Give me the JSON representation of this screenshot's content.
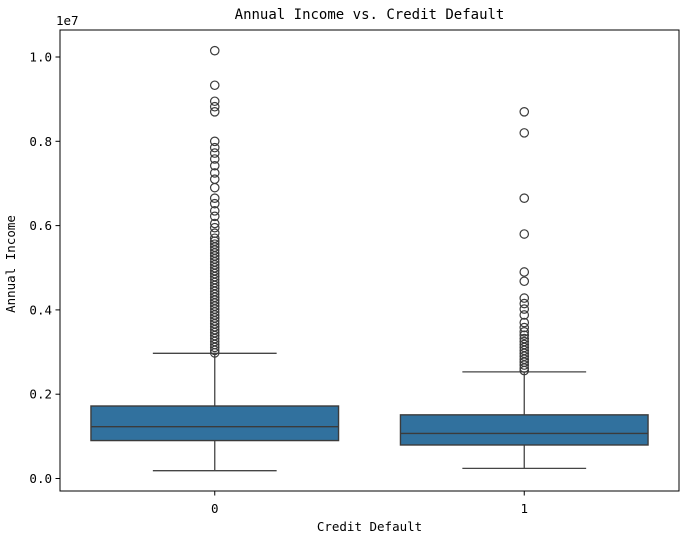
{
  "chart_data": {
    "type": "boxplot",
    "title": "Annual Income vs. Credit Default",
    "xlabel": "Credit Default",
    "ylabel": "Annual Income",
    "y_offset_text": "1e7",
    "grid": false,
    "legend_position": "none",
    "ylim": [
      -300000,
      10640000
    ],
    "ytick_values": [
      0,
      2000000,
      4000000,
      6000000,
      8000000,
      10000000
    ],
    "ytick_labels": [
      "0.0",
      "0.2",
      "0.4",
      "0.6",
      "0.8",
      "1.0"
    ],
    "categories": [
      "0",
      "1"
    ],
    "series": [
      {
        "category": "0",
        "whisker_low": 185000,
        "q1": 900000,
        "median": 1230000,
        "q3": 1720000,
        "whisker_high": 2970000,
        "outliers": [
          10150000,
          9330000,
          8950000,
          8820000,
          8700000,
          8000000,
          7850000,
          7720000,
          7580000,
          7420000,
          7250000,
          7100000,
          6900000,
          6650000,
          6520000,
          6350000,
          6220000,
          6050000,
          5950000,
          5820000,
          5700000,
          5630000,
          5560000,
          5490000,
          5420000,
          5350000,
          5280000,
          5210000,
          5140000,
          5070000,
          5000000,
          4930000,
          4860000,
          4790000,
          4720000,
          4650000,
          4580000,
          4510000,
          4440000,
          4370000,
          4300000,
          4230000,
          4160000,
          4090000,
          4020000,
          3950000,
          3880000,
          3810000,
          3740000,
          3670000,
          3600000,
          3530000,
          3460000,
          3390000,
          3320000,
          3250000,
          3180000,
          3110000,
          3040000,
          2980000
        ]
      },
      {
        "category": "1",
        "whisker_low": 240000,
        "q1": 795000,
        "median": 1070000,
        "q3": 1510000,
        "whisker_high": 2530000,
        "outliers": [
          8700000,
          8200000,
          6650000,
          5800000,
          4900000,
          4680000,
          4280000,
          4150000,
          4020000,
          3880000,
          3700000,
          3580000,
          3480000,
          3400000,
          3320000,
          3250000,
          3180000,
          3110000,
          3040000,
          2970000,
          2900000,
          2830000,
          2760000,
          2690000,
          2620000,
          2560000
        ]
      }
    ],
    "colors": {
      "box_fill": "#31719e",
      "box_edge": "#3b3b3b",
      "whisker": "#454545",
      "flier_edge": "#3b3b3b",
      "spine": "#000000",
      "background": "#ffffff",
      "text": "#000000"
    }
  }
}
